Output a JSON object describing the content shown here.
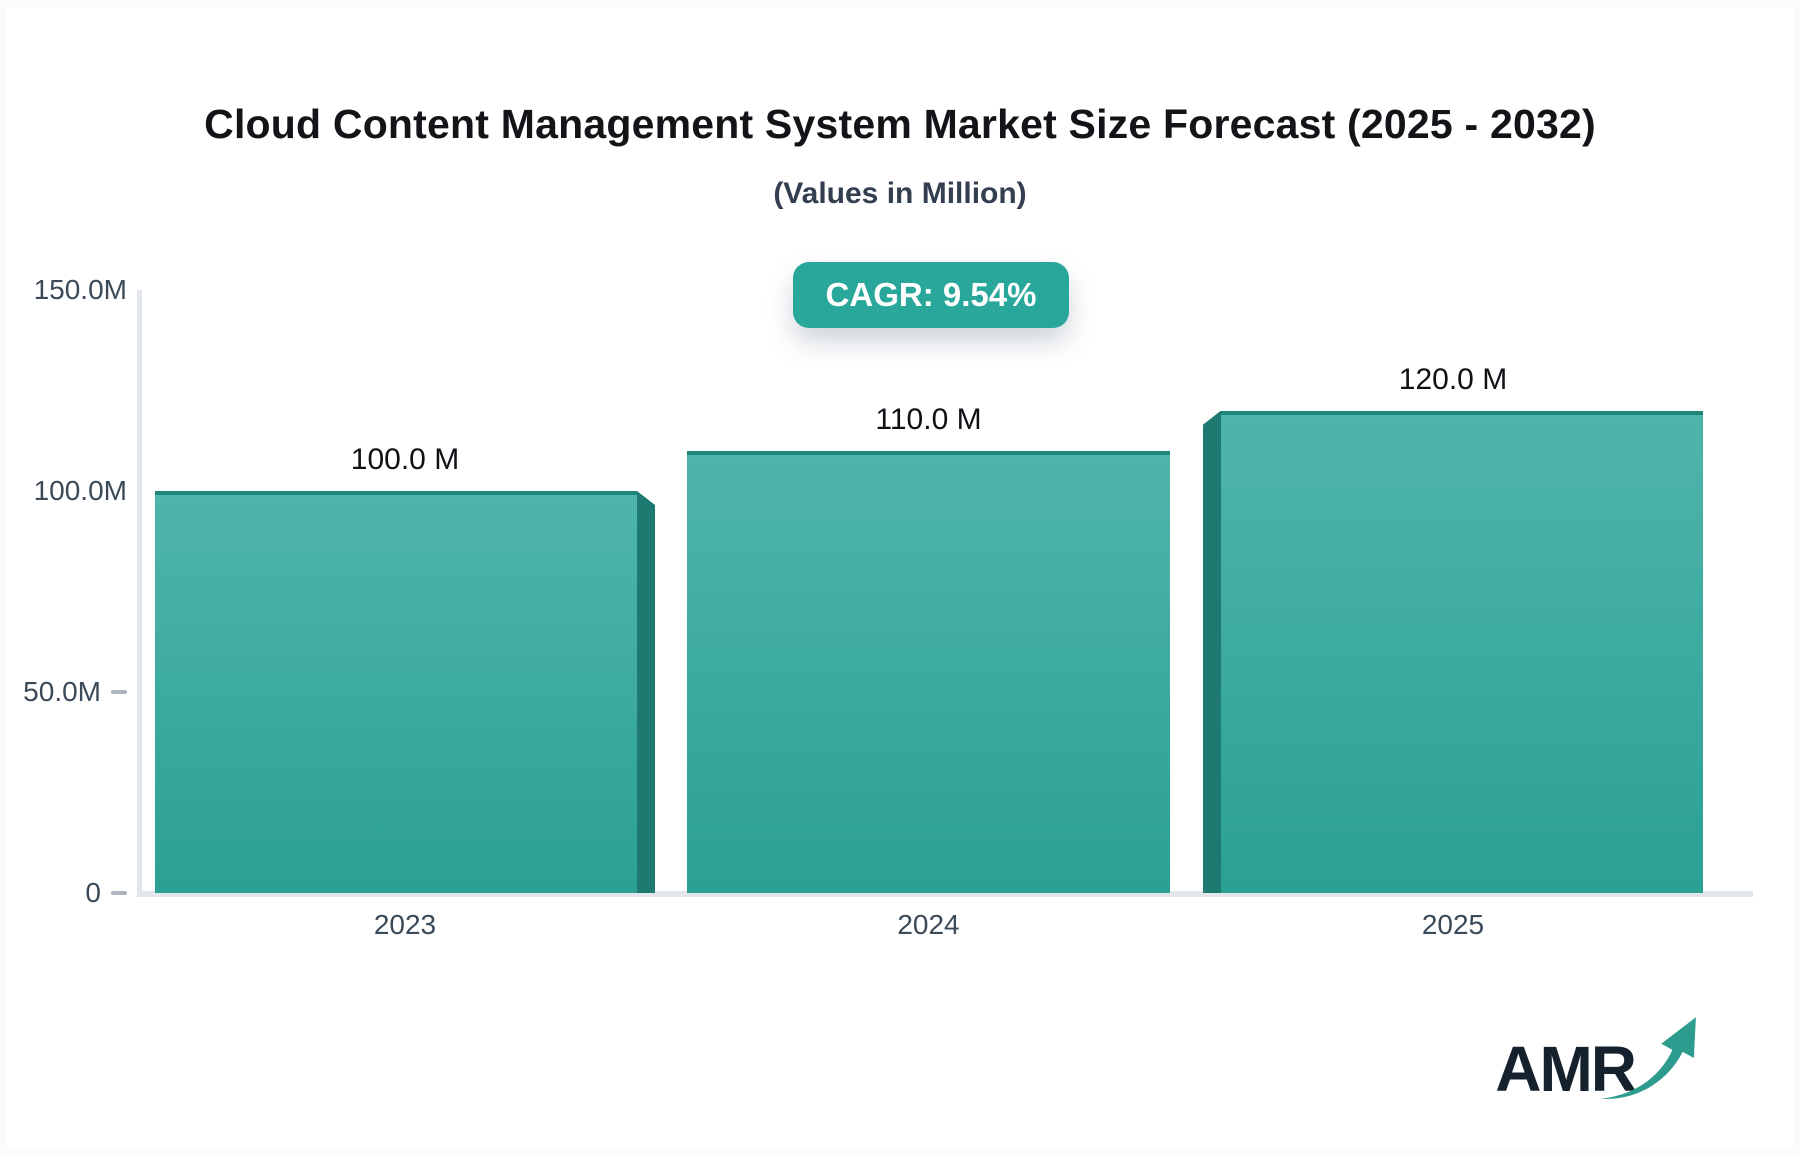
{
  "header": {
    "title": "Cloud Content Management System Market Size Forecast (2025 - 2032)",
    "subtitle": "(Values in Million)"
  },
  "badge": {
    "label": "CAGR: 9.54%",
    "bg": "#2AA79B"
  },
  "chart_data": {
    "type": "bar",
    "title": "Cloud Content Management System Market Size Forecast (2025 - 2032)",
    "subtitle": "(Values in Million)",
    "unit": "Million",
    "categories": [
      "2023",
      "2024",
      "2025"
    ],
    "values": [
      100,
      110,
      120
    ],
    "value_labels": [
      "100.0 M",
      "110.0 M",
      "120.0 M"
    ],
    "xlabel": "",
    "ylabel": "",
    "ylim": [
      0,
      150
    ],
    "yticks": [
      {
        "label": "150.0M",
        "value": 150,
        "dash": false
      },
      {
        "label": "100.0M",
        "value": 100,
        "dash": false
      },
      {
        "label": "50.0M",
        "value": 50,
        "dash": true
      },
      {
        "label": "0",
        "value": 0,
        "dash": true
      }
    ],
    "grid": false,
    "legend": "none",
    "bar_color_top": "#4FB5AB",
    "bar_color_bottom": "#2BA093",
    "bar_edge_color": "#1F867A",
    "bar_depth_color": "#1E7A70",
    "axis_color": "#E3E6EA",
    "depth_sides": [
      "right",
      "none",
      "left"
    ]
  },
  "logo": {
    "text": "AMR",
    "arrow_color": "#2E9B8F"
  }
}
